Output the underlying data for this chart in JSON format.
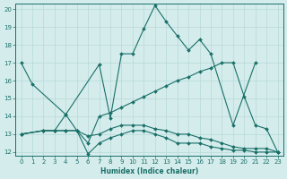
{
  "xlabel": "Humidex (Indice chaleur)",
  "background_color": "#d4ecec",
  "grid_color": "#b8d8d8",
  "line_color": "#1a7068",
  "xlim": [
    -0.5,
    23.5
  ],
  "ylim": [
    11.8,
    20.3
  ],
  "yticks": [
    12,
    13,
    14,
    15,
    16,
    17,
    18,
    19,
    20
  ],
  "xticks": [
    0,
    1,
    2,
    3,
    4,
    5,
    6,
    7,
    8,
    9,
    10,
    11,
    12,
    13,
    14,
    15,
    16,
    17,
    18,
    19,
    20,
    21,
    22,
    23
  ],
  "lines": [
    {
      "x": [
        0,
        1,
        4,
        7,
        8,
        9,
        10,
        11,
        12,
        13,
        14,
        15,
        16,
        17,
        19,
        21
      ],
      "y": [
        17,
        15.8,
        14.1,
        16.9,
        13.9,
        17.5,
        17.5,
        18.9,
        20.2,
        19.3,
        18.5,
        17.7,
        18.3,
        17.5,
        13.5,
        17.0
      ]
    },
    {
      "x": [
        0,
        2,
        3,
        4,
        5,
        6,
        7,
        8,
        9,
        10,
        11,
        12,
        13,
        14,
        15,
        16,
        17,
        18,
        19,
        20,
        21,
        22,
        23
      ],
      "y": [
        13.0,
        13.2,
        13.2,
        14.1,
        13.2,
        12.5,
        14.0,
        14.2,
        14.5,
        14.8,
        15.1,
        15.4,
        15.7,
        16.0,
        16.2,
        16.5,
        16.7,
        17.0,
        17.0,
        15.1,
        13.5,
        13.3,
        12.0
      ]
    },
    {
      "x": [
        0,
        2,
        3,
        4,
        5,
        6,
        7,
        8,
        9,
        10,
        11,
        12,
        13,
        14,
        15,
        16,
        17,
        18,
        19,
        20,
        21,
        22,
        23
      ],
      "y": [
        13.0,
        13.2,
        13.2,
        13.2,
        13.2,
        12.9,
        13.0,
        13.3,
        13.5,
        13.5,
        13.5,
        13.3,
        13.2,
        13.0,
        13.0,
        12.8,
        12.7,
        12.5,
        12.3,
        12.2,
        12.2,
        12.2,
        12.0
      ]
    },
    {
      "x": [
        0,
        2,
        3,
        4,
        5,
        6,
        7,
        8,
        9,
        10,
        11,
        12,
        13,
        14,
        15,
        16,
        17,
        18,
        19,
        20,
        21,
        22,
        23
      ],
      "y": [
        13.0,
        13.2,
        13.2,
        13.2,
        13.2,
        11.9,
        12.5,
        12.8,
        13.0,
        13.2,
        13.2,
        13.0,
        12.8,
        12.5,
        12.5,
        12.5,
        12.3,
        12.2,
        12.1,
        12.1,
        12.0,
        12.0,
        12.0
      ]
    }
  ]
}
